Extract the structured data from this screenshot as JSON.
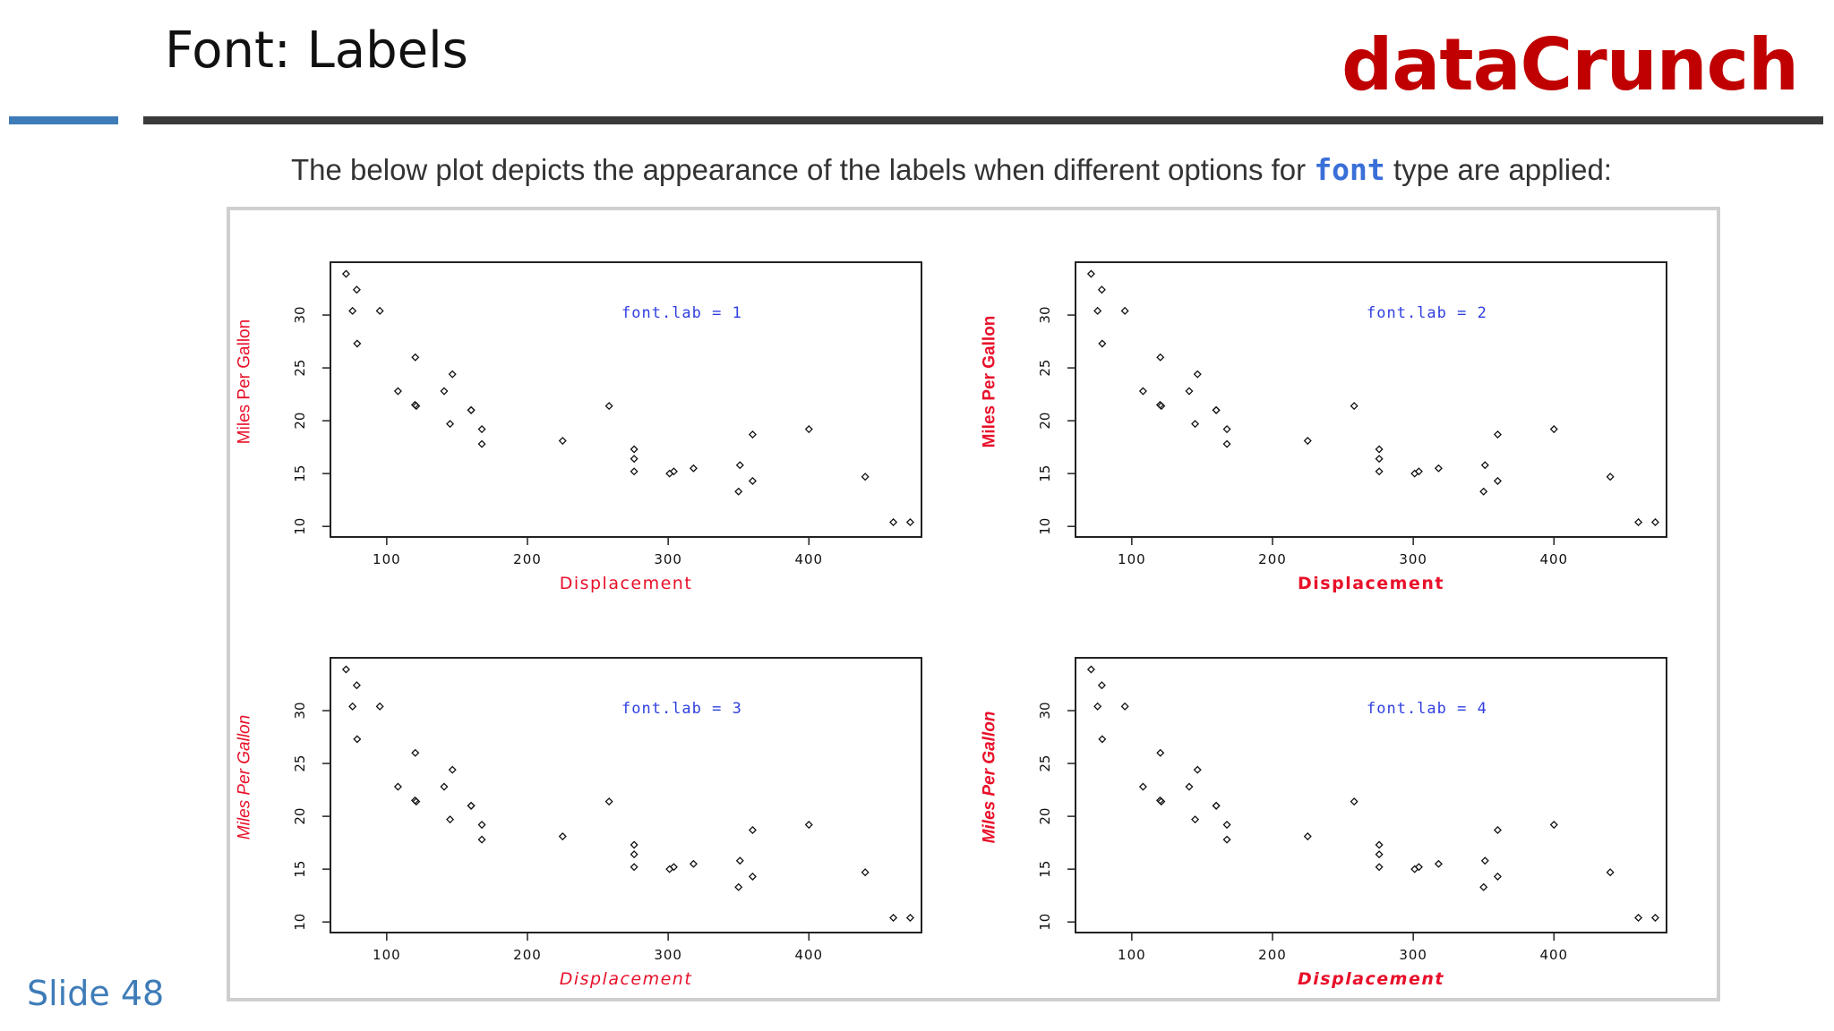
{
  "slide": {
    "title": "Font: Labels",
    "brand": "dataCrunch",
    "slide_number": "Slide 48",
    "accent_color": "#3e7cb8",
    "brand_color": "#c00000"
  },
  "intro": {
    "before": "The below plot depicts the appearance of the labels when different options for",
    "code": "font",
    "after": "type are applied:"
  },
  "chart_data": [
    {
      "type": "scatter",
      "annotation": "font.lab = 1",
      "xlabel": "Displacement",
      "ylabel": "Miles Per Gallon",
      "xlim": [
        60,
        480
      ],
      "ylim": [
        9,
        35
      ],
      "xticks": [
        100,
        200,
        300,
        400
      ],
      "yticks": [
        10,
        15,
        20,
        25,
        30
      ],
      "x": [
        160,
        160,
        108,
        258,
        360,
        225,
        360,
        146.7,
        140.8,
        167.6,
        167.6,
        275.8,
        275.8,
        275.8,
        472,
        460,
        440,
        78.7,
        75.7,
        71.1,
        120.1,
        318,
        304,
        350,
        400,
        79,
        120.3,
        95.1,
        351,
        145,
        301,
        121
      ],
      "y": [
        21,
        21,
        22.8,
        21.4,
        18.7,
        18.1,
        14.3,
        24.4,
        22.8,
        19.2,
        17.8,
        16.4,
        17.3,
        15.2,
        10.4,
        10.4,
        14.7,
        32.4,
        30.4,
        33.9,
        21.5,
        15.5,
        15.2,
        13.3,
        19.2,
        27.3,
        26,
        30.4,
        15.8,
        19.7,
        15,
        21.4
      ]
    },
    {
      "type": "scatter",
      "annotation": "font.lab = 2",
      "xlabel": "Displacement",
      "ylabel": "Miles Per Gallon",
      "xlim": [
        60,
        480
      ],
      "ylim": [
        9,
        35
      ],
      "xticks": [
        100,
        200,
        300,
        400
      ],
      "yticks": [
        10,
        15,
        20,
        25,
        30
      ],
      "x": [
        160,
        160,
        108,
        258,
        360,
        225,
        360,
        146.7,
        140.8,
        167.6,
        167.6,
        275.8,
        275.8,
        275.8,
        472,
        460,
        440,
        78.7,
        75.7,
        71.1,
        120.1,
        318,
        304,
        350,
        400,
        79,
        120.3,
        95.1,
        351,
        145,
        301,
        121
      ],
      "y": [
        21,
        21,
        22.8,
        21.4,
        18.7,
        18.1,
        14.3,
        24.4,
        22.8,
        19.2,
        17.8,
        16.4,
        17.3,
        15.2,
        10.4,
        10.4,
        14.7,
        32.4,
        30.4,
        33.9,
        21.5,
        15.5,
        15.2,
        13.3,
        19.2,
        27.3,
        26,
        30.4,
        15.8,
        19.7,
        15,
        21.4
      ]
    },
    {
      "type": "scatter",
      "annotation": "font.lab = 3",
      "xlabel": "Displacement",
      "ylabel": "Miles Per Gallon",
      "xlim": [
        60,
        480
      ],
      "ylim": [
        9,
        35
      ],
      "xticks": [
        100,
        200,
        300,
        400
      ],
      "yticks": [
        10,
        15,
        20,
        25,
        30
      ],
      "x": [
        160,
        160,
        108,
        258,
        360,
        225,
        360,
        146.7,
        140.8,
        167.6,
        167.6,
        275.8,
        275.8,
        275.8,
        472,
        460,
        440,
        78.7,
        75.7,
        71.1,
        120.1,
        318,
        304,
        350,
        400,
        79,
        120.3,
        95.1,
        351,
        145,
        301,
        121
      ],
      "y": [
        21,
        21,
        22.8,
        21.4,
        18.7,
        18.1,
        14.3,
        24.4,
        22.8,
        19.2,
        17.8,
        16.4,
        17.3,
        15.2,
        10.4,
        10.4,
        14.7,
        32.4,
        30.4,
        33.9,
        21.5,
        15.5,
        15.2,
        13.3,
        19.2,
        27.3,
        26,
        30.4,
        15.8,
        19.7,
        15,
        21.4
      ]
    },
    {
      "type": "scatter",
      "annotation": "font.lab = 4",
      "xlabel": "Displacement",
      "ylabel": "Miles Per Gallon",
      "xlim": [
        60,
        480
      ],
      "ylim": [
        9,
        35
      ],
      "xticks": [
        100,
        200,
        300,
        400
      ],
      "yticks": [
        10,
        15,
        20,
        25,
        30
      ],
      "x": [
        160,
        160,
        108,
        258,
        360,
        225,
        360,
        146.7,
        140.8,
        167.6,
        167.6,
        275.8,
        275.8,
        275.8,
        472,
        460,
        440,
        78.7,
        75.7,
        71.1,
        120.1,
        318,
        304,
        350,
        400,
        79,
        120.3,
        95.1,
        351,
        145,
        301,
        121
      ],
      "y": [
        21,
        21,
        22.8,
        21.4,
        18.7,
        18.1,
        14.3,
        24.4,
        22.8,
        19.2,
        17.8,
        16.4,
        17.3,
        15.2,
        10.4,
        10.4,
        14.7,
        32.4,
        30.4,
        33.9,
        21.5,
        15.5,
        15.2,
        13.3,
        19.2,
        27.3,
        26,
        30.4,
        15.8,
        19.7,
        15,
        21.4
      ]
    }
  ],
  "colors": {
    "axis_label": "#e8102a",
    "annotation": "#2f3fe0",
    "points": "#111111"
  }
}
